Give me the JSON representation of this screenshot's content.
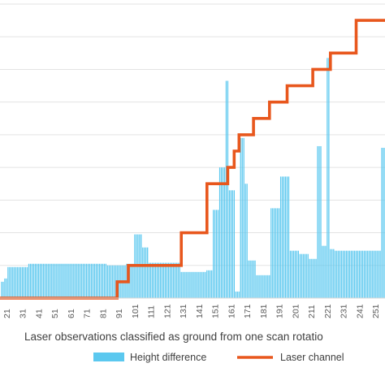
{
  "chart_data": {
    "type": "bar",
    "title": "",
    "xlabel": "Laser observations classified as ground from one scan rotatio",
    "ylabel": "",
    "x_ticks": [
      21,
      31,
      41,
      51,
      61,
      71,
      81,
      91,
      101,
      111,
      121,
      131,
      141,
      151,
      161,
      171,
      181,
      191,
      201,
      211,
      221,
      231,
      241,
      251
    ],
    "x_tick_labels": [
      "21",
      "31",
      "41",
      "51",
      "61",
      "71",
      "81",
      "91",
      "101",
      "111",
      "121",
      "131",
      "141",
      "151",
      "161",
      "171",
      "181",
      "191",
      "201",
      "211",
      "221",
      "231",
      "241",
      "251"
    ],
    "x_range": [
      17,
      257
    ],
    "ylim": [
      0,
      9
    ],
    "grid": true,
    "legend_position": "bottom",
    "series": [
      {
        "name": "Height difference",
        "kind": "bar",
        "color": "#5bc8ef",
        "segments": [
          {
            "from": 18,
            "to": 19,
            "value": 0.5
          },
          {
            "from": 20,
            "to": 21,
            "value": 0.6
          },
          {
            "from": 22,
            "to": 34,
            "value": 0.95
          },
          {
            "from": 35,
            "to": 83,
            "value": 1.05
          },
          {
            "from": 84,
            "to": 95,
            "value": 1.0
          },
          {
            "from": 96,
            "to": 100,
            "value": 1.05
          },
          {
            "from": 101,
            "to": 105,
            "value": 1.95
          },
          {
            "from": 106,
            "to": 109,
            "value": 1.55
          },
          {
            "from": 110,
            "to": 129,
            "value": 1.08
          },
          {
            "from": 130,
            "to": 145,
            "value": 0.8
          },
          {
            "from": 146,
            "to": 149,
            "value": 0.85
          },
          {
            "from": 150,
            "to": 153,
            "value": 2.7
          },
          {
            "from": 154,
            "to": 157,
            "value": 4.0
          },
          {
            "from": 158,
            "to": 159,
            "value": 6.65
          },
          {
            "from": 160,
            "to": 163,
            "value": 3.3
          },
          {
            "from": 164,
            "to": 166,
            "value": 0.2
          },
          {
            "from": 167,
            "to": 169,
            "value": 4.9
          },
          {
            "from": 170,
            "to": 171,
            "value": 3.5
          },
          {
            "from": 172,
            "to": 176,
            "value": 1.15
          },
          {
            "from": 177,
            "to": 185,
            "value": 0.7
          },
          {
            "from": 186,
            "to": 191,
            "value": 2.75
          },
          {
            "from": 192,
            "to": 197,
            "value": 3.72
          },
          {
            "from": 198,
            "to": 203,
            "value": 1.45
          },
          {
            "from": 204,
            "to": 209,
            "value": 1.35
          },
          {
            "from": 210,
            "to": 214,
            "value": 1.2
          },
          {
            "from": 215,
            "to": 217,
            "value": 4.65
          },
          {
            "from": 218,
            "to": 220,
            "value": 1.6
          },
          {
            "from": 221,
            "to": 222,
            "value": 7.35
          },
          {
            "from": 223,
            "to": 225,
            "value": 1.5
          },
          {
            "from": 226,
            "to": 254,
            "value": 1.45
          },
          {
            "from": 255,
            "to": 257,
            "value": 4.6
          }
        ]
      },
      {
        "name": "Laser channel",
        "kind": "line",
        "color": "#e8571d",
        "steps": [
          {
            "from": 17,
            "to": 90,
            "value": 0
          },
          {
            "from": 90,
            "to": 97,
            "value": 0.5
          },
          {
            "from": 97,
            "to": 130,
            "value": 1.0
          },
          {
            "from": 130,
            "to": 146,
            "value": 2.0
          },
          {
            "from": 146,
            "to": 159,
            "value": 3.5
          },
          {
            "from": 159,
            "to": 163,
            "value": 4.0
          },
          {
            "from": 163,
            "to": 166,
            "value": 4.5
          },
          {
            "from": 166,
            "to": 175,
            "value": 5.0
          },
          {
            "from": 175,
            "to": 185,
            "value": 5.5
          },
          {
            "from": 185,
            "to": 196,
            "value": 6.0
          },
          {
            "from": 196,
            "to": 212,
            "value": 6.5
          },
          {
            "from": 212,
            "to": 223,
            "value": 7.0
          },
          {
            "from": 223,
            "to": 239,
            "value": 7.5
          },
          {
            "from": 239,
            "to": 257,
            "value": 8.5
          }
        ]
      }
    ]
  }
}
